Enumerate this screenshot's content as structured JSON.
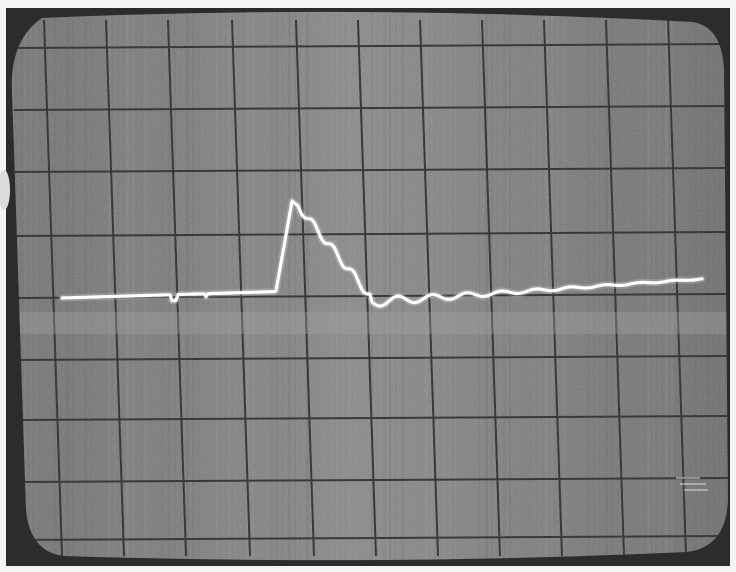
{
  "photo": {
    "subject": "oscilloscope-screen",
    "trace_color": "#ffffff",
    "screen_color": "#7a7a7a",
    "bezel_color": "#2c2c2c",
    "grid_color": "#1e1e1e",
    "paper_color": "#f4f4f4"
  }
}
